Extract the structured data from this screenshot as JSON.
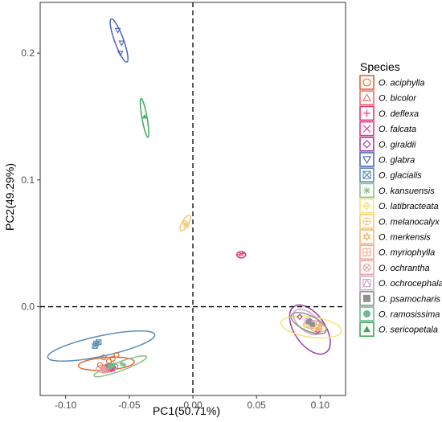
{
  "chart_data": {
    "type": "scatter",
    "xlabel": "PC1(50.71%)",
    "ylabel": "PC2(49.29%)",
    "xlim": [
      -0.12,
      0.12
    ],
    "ylim": [
      -0.07,
      0.24
    ],
    "x_ticks": [
      -0.1,
      -0.05,
      0.0,
      0.05,
      0.1
    ],
    "x_tick_labels": [
      "-0.10",
      "-0.05",
      "0.00",
      "0.05",
      "0.10"
    ],
    "y_ticks": [
      0.0,
      0.1,
      0.2
    ],
    "y_tick_labels": [
      "0.0",
      "0.1",
      "0.2"
    ],
    "reference_lines": {
      "x": 0,
      "y": 0,
      "style": "dashed"
    },
    "grid": false,
    "legend": {
      "title": "Species",
      "position": "right",
      "entries": [
        {
          "name": "O. aciphylla",
          "color": "#e0662b",
          "shape": "circle-open"
        },
        {
          "name": "O. bicolor",
          "color": "#f06a6a",
          "shape": "triangle-open"
        },
        {
          "name": "O. deflexa",
          "color": "#e8336e",
          "shape": "plus"
        },
        {
          "name": "O. falcata",
          "color": "#e8338a",
          "shape": "cross"
        },
        {
          "name": "O. giraldii",
          "color": "#a43ba8",
          "shape": "diamond-open"
        },
        {
          "name": "O. glabra",
          "color": "#4a65b8",
          "shape": "triangle-down-open"
        },
        {
          "name": "O. glacialis",
          "color": "#5b8db5",
          "shape": "square-cross"
        },
        {
          "name": "O. kansuensis",
          "color": "#8fbc8f",
          "shape": "asterisk"
        },
        {
          "name": "O. latibracteata",
          "color": "#f7e27a",
          "shape": "diamond-plus"
        },
        {
          "name": "O. melanocalyx",
          "color": "#f5c97a",
          "shape": "circle-plus"
        },
        {
          "name": "O. merkensis",
          "color": "#f5b870",
          "shape": "star-six"
        },
        {
          "name": "O. myriophylla",
          "color": "#f2a990",
          "shape": "square-plus"
        },
        {
          "name": "O. ochrantha",
          "color": "#e8a3a3",
          "shape": "circle-cross"
        },
        {
          "name": "O. ochrocephala",
          "color": "#c9a9c9",
          "shape": "square-triangle"
        },
        {
          "name": "O. psamocharis",
          "color": "#909090",
          "shape": "square-filled"
        },
        {
          "name": "O. ramosissima",
          "color": "#6dbb8a",
          "shape": "circle-filled"
        },
        {
          "name": "O. sericopetala",
          "color": "#3ea95b",
          "shape": "triangle-filled"
        }
      ]
    },
    "series": [
      {
        "name": "O. aciphylla",
        "points": [
          [
            -0.07,
            -0.04
          ],
          [
            -0.066,
            -0.043
          ],
          [
            -0.063,
            -0.041
          ],
          [
            -0.06,
            -0.038
          ],
          [
            -0.073,
            -0.046
          ]
        ],
        "ellipse": {
          "center": [
            -0.068,
            -0.045
          ],
          "radii": [
            0.022,
            0.005
          ],
          "angle_deg": 4
        }
      },
      {
        "name": "O. bicolor",
        "points": [
          [
            -0.069,
            -0.05
          ],
          [
            -0.066,
            -0.048
          ]
        ],
        "ellipse": {
          "center": [
            -0.067,
            -0.049
          ],
          "radii": [
            0.005,
            0.0025
          ],
          "angle_deg": 0
        }
      },
      {
        "name": "O. deflexa",
        "points": [
          [
            0.037,
            0.041
          ],
          [
            0.039,
            0.042
          ]
        ],
        "ellipse": {
          "center": [
            0.038,
            0.041
          ],
          "radii": [
            0.0035,
            0.0025
          ],
          "angle_deg": 0
        }
      },
      {
        "name": "O. falcata",
        "points": [
          [
            -0.067,
            -0.047
          ],
          [
            -0.063,
            -0.049
          ]
        ],
        "ellipse": {
          "center": [
            -0.065,
            -0.048
          ],
          "radii": [
            0.004,
            0.003
          ],
          "angle_deg": 0
        }
      },
      {
        "name": "O. giraldii",
        "points": [
          [
            0.084,
            -0.008
          ],
          [
            0.092,
            -0.011
          ],
          [
            0.098,
            -0.019
          ]
        ],
        "ellipse": {
          "center": [
            0.092,
            -0.018
          ],
          "radii": [
            0.022,
            0.012
          ],
          "angle_deg": -55
        }
      },
      {
        "name": "O. glabra",
        "points": [
          [
            -0.059,
            0.218
          ],
          [
            -0.056,
            0.208
          ],
          [
            -0.057,
            0.2
          ]
        ],
        "ellipse": {
          "center": [
            -0.058,
            0.21
          ],
          "radii": [
            0.018,
            0.0035
          ],
          "angle_deg": 110
        }
      },
      {
        "name": "O. glacialis",
        "points": [
          [
            -0.076,
            -0.029
          ],
          [
            -0.074,
            -0.028
          ],
          [
            -0.077,
            -0.031
          ]
        ],
        "ellipse": {
          "center": [
            -0.072,
            -0.031
          ],
          "radii": [
            0.043,
            0.008
          ],
          "angle_deg": 12
        }
      },
      {
        "name": "O. kansuensis",
        "points": [
          [
            -0.056,
            -0.045
          ],
          [
            -0.054,
            -0.046
          ]
        ],
        "ellipse": {
          "center": [
            -0.057,
            -0.047
          ],
          "radii": [
            0.022,
            0.0035
          ],
          "angle_deg": 20
        }
      },
      {
        "name": "O. latibracteata",
        "points": [
          [
            0.088,
            -0.015
          ],
          [
            0.095,
            -0.016
          ]
        ],
        "ellipse": {
          "center": [
            0.093,
            -0.016
          ],
          "radii": [
            0.024,
            0.008
          ],
          "angle_deg": -8
        }
      },
      {
        "name": "O. melanocalyx",
        "points": [
          [
            -0.006,
            0.066
          ],
          [
            -0.005,
            0.064
          ]
        ],
        "ellipse": {
          "center": [
            -0.006,
            0.066
          ],
          "radii": [
            0.007,
            0.0025
          ],
          "angle_deg": 60
        }
      },
      {
        "name": "O. merkensis",
        "points": [
          [
            0.1,
            -0.016
          ],
          [
            0.098,
            -0.018
          ]
        ],
        "ellipse": {
          "center": [
            0.099,
            -0.017
          ],
          "radii": [
            0.006,
            0.003
          ],
          "angle_deg": 0
        }
      },
      {
        "name": "O. myriophylla",
        "points": [
          [
            0.095,
            -0.013
          ],
          [
            0.093,
            -0.015
          ]
        ],
        "ellipse": {
          "center": [
            0.094,
            -0.014
          ],
          "radii": [
            0.007,
            0.003
          ],
          "angle_deg": 0
        }
      },
      {
        "name": "O. ochrantha",
        "points": [
          [
            -0.071,
            -0.049
          ],
          [
            -0.069,
            -0.05
          ]
        ],
        "ellipse": {
          "center": [
            -0.07,
            -0.049
          ],
          "radii": [
            0.006,
            0.003
          ],
          "angle_deg": 0
        }
      },
      {
        "name": "O. ochrocephala",
        "points": [
          [
            0.09,
            -0.011
          ],
          [
            0.093,
            -0.013
          ]
        ],
        "ellipse": {
          "center": [
            0.09,
            -0.012
          ],
          "radii": [
            0.013,
            0.007
          ],
          "angle_deg": -40
        }
      },
      {
        "name": "O. psamocharis",
        "points": [
          [
            0.091,
            -0.012
          ],
          [
            0.094,
            -0.014
          ]
        ],
        "ellipse": {
          "center": [
            0.091,
            -0.013
          ],
          "radii": [
            0.015,
            0.006
          ],
          "angle_deg": -25
        }
      },
      {
        "name": "O. ramosissima",
        "points": [
          [
            -0.065,
            -0.047
          ],
          [
            -0.063,
            -0.046
          ]
        ],
        "ellipse": {
          "center": [
            -0.064,
            -0.047
          ],
          "radii": [
            0.005,
            0.0025
          ],
          "angle_deg": 0
        }
      },
      {
        "name": "O. sericopetala",
        "points": [
          [
            -0.038,
            0.15
          ]
        ],
        "ellipse": {
          "center": [
            -0.038,
            0.149
          ],
          "radii": [
            0.0155,
            0.002
          ],
          "angle_deg": 100
        }
      }
    ]
  }
}
